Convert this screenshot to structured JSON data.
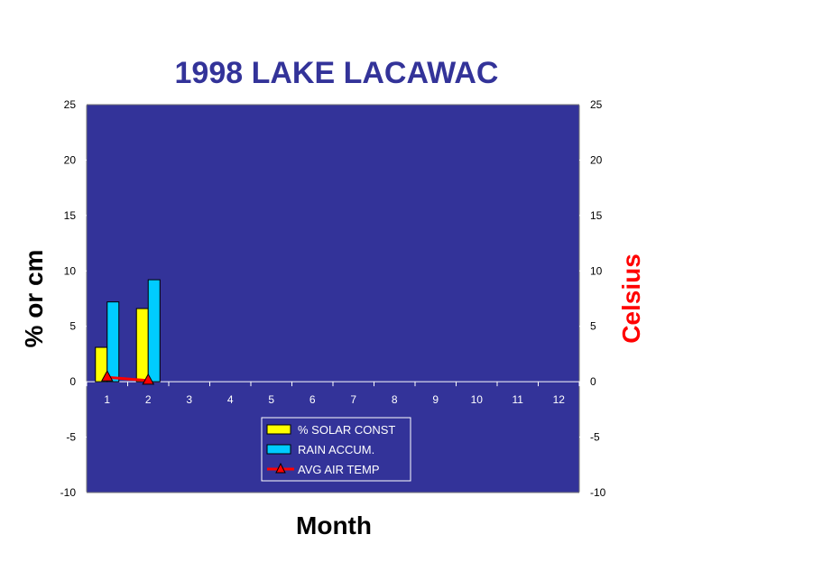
{
  "chart_data": {
    "type": "bar",
    "title": "1998 LAKE LACAWAC",
    "xlabel": "Month",
    "ylabel": "% or cm",
    "y2label": "Celsius",
    "categories": [
      "1",
      "2",
      "3",
      "4",
      "5",
      "6",
      "7",
      "8",
      "9",
      "10",
      "11",
      "12"
    ],
    "ylim": [
      -10,
      25
    ],
    "y2lim": [
      -10,
      25
    ],
    "yticks": [
      "25",
      "20",
      "15",
      "10",
      "5",
      "0",
      "-5",
      "-10"
    ],
    "y2ticks": [
      "25",
      "20",
      "15",
      "10",
      "5",
      "0",
      "-5",
      "-10"
    ],
    "series": [
      {
        "name": "% SOLAR CONST",
        "type": "bar",
        "color": "#FFFF00",
        "values": [
          3.1,
          6.6,
          null,
          null,
          null,
          null,
          null,
          null,
          null,
          null,
          null,
          null
        ]
      },
      {
        "name": "RAIN ACCUM.",
        "type": "bar",
        "color": "#00CCFF",
        "values": [
          7.2,
          9.2,
          null,
          null,
          null,
          null,
          null,
          null,
          null,
          null,
          null,
          null
        ]
      },
      {
        "name": "AVG  AIR  TEMP",
        "type": "line",
        "marker": "triangle",
        "color": "#FF0000",
        "values": [
          0.4,
          0.1,
          null,
          null,
          null,
          null,
          null,
          null,
          null,
          null,
          null,
          null
        ]
      }
    ],
    "plot_background": "#333399",
    "ylabel_color": "#000000",
    "y2label_color": "#FF0000",
    "legend_position": "bottom-center",
    "grid": false
  }
}
